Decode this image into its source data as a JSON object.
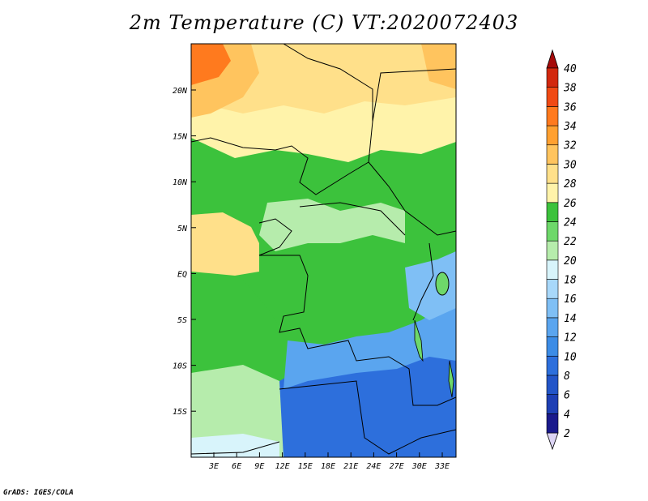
{
  "title": "2m Temperature (C) VT:2020072403",
  "footer": "GrADS: IGES/COLA",
  "map": {
    "lat_ticks": [
      "20N",
      "15N",
      "10N",
      "5N",
      "EQ",
      "5S",
      "10S",
      "15S"
    ],
    "lon_ticks": [
      "3E",
      "6E",
      "9E",
      "12E",
      "15E",
      "18E",
      "21E",
      "24E",
      "27E",
      "30E",
      "33E"
    ]
  },
  "colorbar": {
    "levels": [
      "2",
      "4",
      "6",
      "8",
      "10",
      "12",
      "14",
      "16",
      "18",
      "20",
      "22",
      "24",
      "26",
      "28",
      "30",
      "32",
      "34",
      "36",
      "38",
      "40"
    ],
    "colors": [
      "#1a1a8c",
      "#1e3fb4",
      "#2355c8",
      "#2d6fdc",
      "#3c8ce6",
      "#5aa5ef",
      "#7fbff5",
      "#a8d8fa",
      "#d8f4fb",
      "#b6ecac",
      "#6ed86a",
      "#3cc23c",
      "#fff3aa",
      "#ffe08a",
      "#ffc45e",
      "#ffa030",
      "#ff7a1e",
      "#f04a14",
      "#d2280e",
      "#a50a0a"
    ],
    "lower_tip_color": "#dcd4f4",
    "upper_tip_color": "#a50a0a"
  }
}
